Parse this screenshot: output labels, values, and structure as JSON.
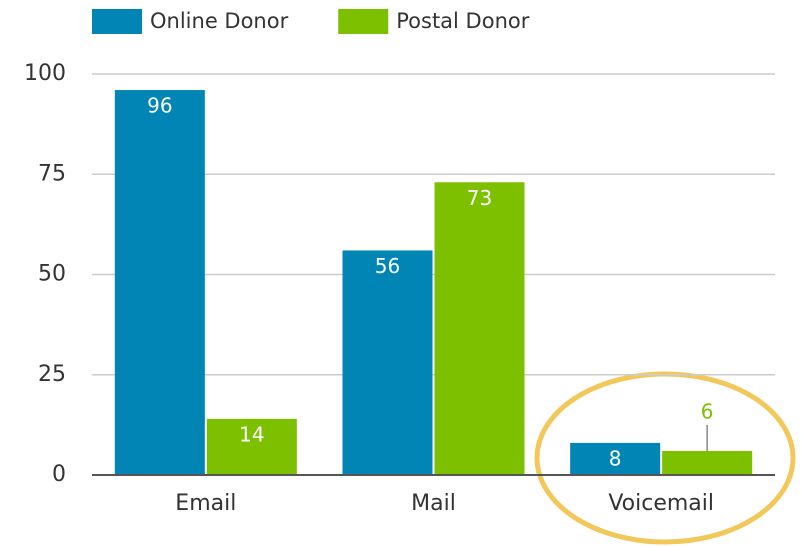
{
  "chart_data": {
    "type": "bar",
    "categories": [
      "Email",
      "Mail",
      "Voicemail"
    ],
    "series": [
      {
        "name": "Online Donor",
        "color": "#0085b5",
        "values": [
          96,
          56,
          8
        ]
      },
      {
        "name": "Postal Donor",
        "color": "#7dc000",
        "values": [
          14,
          73,
          6
        ]
      }
    ],
    "ylim": [
      0,
      100
    ],
    "yticks": [
      0,
      25,
      50,
      75,
      100
    ],
    "grid": true,
    "legend": "top"
  }
}
